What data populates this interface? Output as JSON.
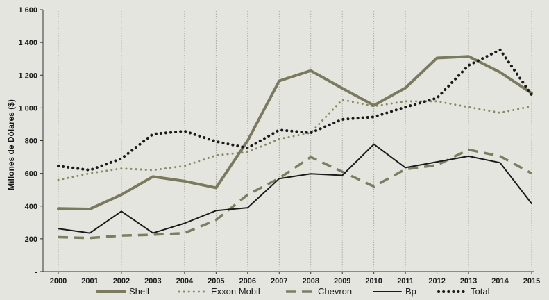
{
  "chart_data": {
    "type": "line",
    "title": "",
    "xlabel": "",
    "ylabel": "Millones de Dólares ($)",
    "ylim": [
      0,
      1600
    ],
    "y_ticks": [
      {
        "value": 0,
        "label": "-"
      },
      {
        "value": 200,
        "label": "200"
      },
      {
        "value": 400,
        "label": "400"
      },
      {
        "value": 600,
        "label": "600"
      },
      {
        "value": 800,
        "label": "800"
      },
      {
        "value": 1000,
        "label": "1 000"
      },
      {
        "value": 1200,
        "label": "1 200"
      },
      {
        "value": 1400,
        "label": "1 400"
      },
      {
        "value": 1600,
        "label": "1 600"
      }
    ],
    "categories": [
      "2000",
      "2001",
      "2002",
      "2003",
      "2004",
      "2005",
      "2006",
      "2007",
      "2008",
      "2009",
      "2010",
      "2011",
      "2012",
      "2013",
      "2014",
      "2015"
    ],
    "legend_position": "bottom",
    "series": [
      {
        "name": "Shell",
        "style": "solid-thick",
        "color": "#7a7a5e",
        "values": [
          385,
          382,
          470,
          580,
          552,
          512,
          800,
          1165,
          1228,
          1120,
          1015,
          1122,
          1305,
          1315,
          1218,
          1090
        ]
      },
      {
        "name": "Exxon Mobil",
        "style": "dotted",
        "color": "#8a8a62",
        "values": [
          560,
          600,
          630,
          620,
          645,
          710,
          730,
          810,
          848,
          1050,
          1010,
          1040,
          1040,
          1005,
          970,
          1010
        ]
      },
      {
        "name": "Chevron",
        "style": "dashed",
        "color": "#7d7d62",
        "values": [
          210,
          205,
          220,
          225,
          235,
          315,
          470,
          570,
          700,
          610,
          520,
          625,
          650,
          745,
          705,
          600
        ]
      },
      {
        "name": "Bp",
        "style": "solid",
        "color": "#1a1a1a",
        "values": [
          262,
          235,
          368,
          235,
          295,
          372,
          390,
          568,
          597,
          588,
          778,
          635,
          670,
          705,
          665,
          415
        ]
      },
      {
        "name": "Total",
        "style": "dotted-thick",
        "color": "#1a1a1a",
        "values": [
          645,
          620,
          690,
          840,
          858,
          795,
          755,
          865,
          848,
          930,
          945,
          1005,
          1060,
          1260,
          1355,
          1080
        ]
      }
    ]
  }
}
